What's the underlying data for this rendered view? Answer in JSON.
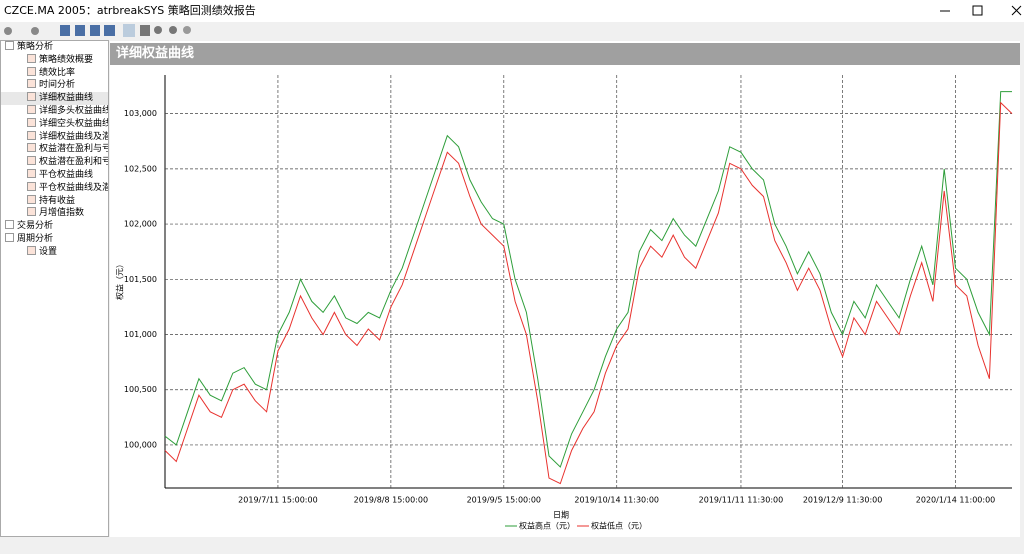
{
  "window": {
    "title": "CZCE.MA 2005：atrbreakSYS 策略回测绩效报告"
  },
  "tree": {
    "items": [
      {
        "label": "策略分析",
        "level": 0
      },
      {
        "label": "策略绩效概要",
        "level": 1
      },
      {
        "label": "绩效比率",
        "level": 1
      },
      {
        "label": "时间分析",
        "level": 1
      },
      {
        "label": "详细权益曲线",
        "level": 1
      },
      {
        "label": "详细多头权益曲线",
        "level": 1
      },
      {
        "label": "详细空头权益曲线",
        "level": 1
      },
      {
        "label": "详细权益曲线及潜在",
        "level": 1
      },
      {
        "label": "权益潜在盈利与亏损",
        "level": 1
      },
      {
        "label": "权益潜在盈利和亏损",
        "level": 1
      },
      {
        "label": "平仓权益曲线",
        "level": 1
      },
      {
        "label": "平仓权益曲线及潜在",
        "level": 1
      },
      {
        "label": "持有收益",
        "level": 1
      },
      {
        "label": "月增值指数",
        "level": 1
      },
      {
        "label": "交易分析",
        "level": 0
      },
      {
        "label": "周期分析",
        "level": 0
      },
      {
        "label": "设置",
        "level": 1
      }
    ]
  },
  "panel": {
    "title": "详细权益曲线"
  },
  "chart_data": {
    "type": "line",
    "x_label": "日期",
    "y_label": "权益（元）",
    "grid": true,
    "legend": "bottom",
    "categories": [
      null,
      null,
      null,
      null,
      null,
      null,
      null,
      null,
      null,
      null,
      "2019/7/11 15:00:00",
      null,
      null,
      null,
      null,
      null,
      null,
      null,
      null,
      null,
      "2019/8/8 15:00:00",
      null,
      null,
      null,
      null,
      null,
      null,
      null,
      null,
      null,
      "2019/9/5 15:00:00",
      null,
      null,
      null,
      null,
      null,
      null,
      null,
      null,
      null,
      "2019/10/14 11:30:00",
      null,
      null,
      null,
      null,
      null,
      null,
      null,
      null,
      null,
      null,
      "2019/11/11 11:30:00",
      null,
      null,
      null,
      null,
      null,
      null,
      null,
      null,
      "2019/12/9 11:30:00",
      null,
      null,
      null,
      null,
      null,
      null,
      null,
      null,
      null,
      "2020/1/14 11:00:00",
      null,
      null,
      null,
      null,
      null
    ],
    "ylim": [
      99610,
      103350
    ],
    "yticks": [
      {
        "value": 100000,
        "label": "100,000"
      },
      {
        "value": 100500,
        "label": "100,500"
      },
      {
        "value": 101000,
        "label": "101,000"
      },
      {
        "value": 101500,
        "label": "101,500"
      },
      {
        "value": 102000,
        "label": "102,000"
      },
      {
        "value": 102500,
        "label": "102,500"
      },
      {
        "value": 103000,
        "label": "103,000"
      }
    ],
    "series": [
      {
        "name": "权益高点（元）",
        "color": "#2e9e3a",
        "values": [
          100080,
          100000,
          100300,
          100600,
          100450,
          100400,
          100650,
          100700,
          100550,
          100500,
          101000,
          101200,
          101500,
          101300,
          101200,
          101350,
          101150,
          101100,
          101200,
          101150,
          101400,
          101600,
          101900,
          102200,
          102500,
          102800,
          102700,
          102400,
          102200,
          102050,
          102000,
          101500,
          101200,
          100600,
          99900,
          99800,
          100100,
          100300,
          100500,
          100800,
          101050,
          101200,
          101750,
          101950,
          101850,
          102050,
          101900,
          101800,
          102050,
          102300,
          102700,
          102650,
          102500,
          102400,
          102000,
          101800,
          101550,
          101750,
          101550,
          101200,
          101000,
          101300,
          101150,
          101450,
          101300,
          101150,
          101500,
          101800,
          101450,
          102500,
          101600,
          101500,
          101200,
          101000,
          103200,
          103200
        ]
      },
      {
        "name": "权益低点（元）",
        "color": "#e8322e",
        "values": [
          99950,
          99850,
          100150,
          100450,
          100300,
          100250,
          100500,
          100550,
          100400,
          100300,
          100850,
          101050,
          101350,
          101150,
          101000,
          101200,
          101000,
          100900,
          101050,
          100950,
          101250,
          101450,
          101750,
          102050,
          102350,
          102650,
          102550,
          102250,
          102000,
          101900,
          101800,
          101300,
          101000,
          100400,
          99700,
          99650,
          99950,
          100150,
          100300,
          100650,
          100900,
          101050,
          101600,
          101800,
          101700,
          101900,
          101700,
          101600,
          101850,
          102100,
          102550,
          102500,
          102350,
          102250,
          101850,
          101650,
          101400,
          101600,
          101400,
          101050,
          100800,
          101150,
          101000,
          101300,
          101150,
          101000,
          101350,
          101650,
          101300,
          102300,
          101450,
          101350,
          100900,
          100600,
          103100,
          103000
        ]
      }
    ]
  }
}
